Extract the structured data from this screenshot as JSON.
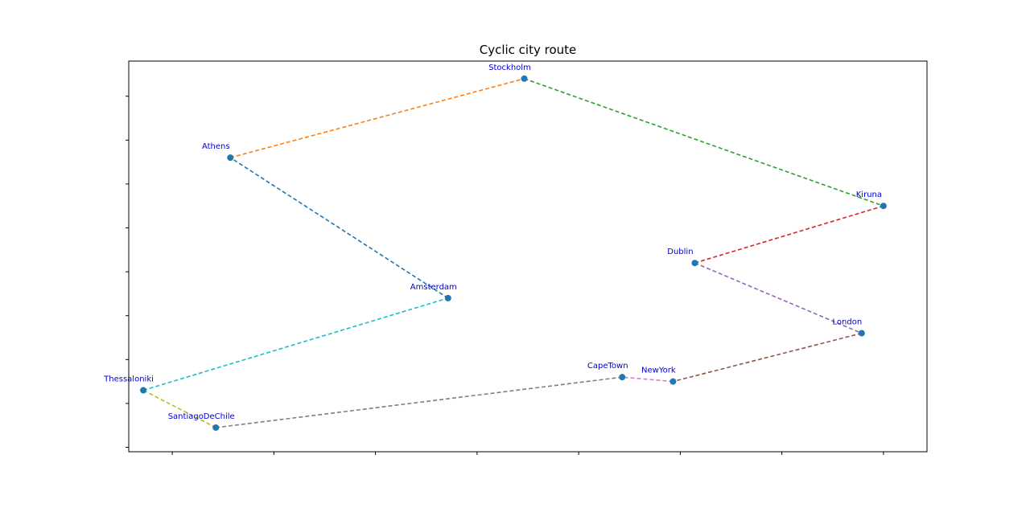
{
  "chart_data": {
    "type": "line",
    "title": "Cyclic city route",
    "xlabel": "",
    "ylabel": "",
    "xlim": [
      -0.6,
      10.4
    ],
    "ylim": [
      -0.1,
      8.8
    ],
    "xticks": [
      0,
      1.4,
      2.8,
      4.2,
      5.6,
      7.0,
      8.4,
      9.8
    ],
    "yticks": [
      0,
      1,
      2,
      3,
      4,
      5,
      6,
      7,
      8
    ],
    "grid": false,
    "legend": "none",
    "marker_color": "#1f77b4",
    "label_color": "#0000cc",
    "cities": [
      {
        "name": "Amsterdam",
        "x": 3.8,
        "y": 3.4
      },
      {
        "name": "Athens",
        "x": 0.8,
        "y": 6.6
      },
      {
        "name": "Stockholm",
        "x": 4.85,
        "y": 8.4
      },
      {
        "name": "Kiruna",
        "x": 9.8,
        "y": 5.5
      },
      {
        "name": "Dublin",
        "x": 7.2,
        "y": 4.2
      },
      {
        "name": "London",
        "x": 9.5,
        "y": 2.6
      },
      {
        "name": "NewYork",
        "x": 6.9,
        "y": 1.5
      },
      {
        "name": "CapeTown",
        "x": 6.2,
        "y": 1.6
      },
      {
        "name": "SantiagoDeChile",
        "x": 0.6,
        "y": 0.45
      },
      {
        "name": "Thessaloniki",
        "x": -0.4,
        "y": 1.3
      }
    ],
    "segment_colors": [
      "#1f77b4",
      "#ff7f0e",
      "#2ca02c",
      "#d62728",
      "#9467bd",
      "#8c564b",
      "#e377c2",
      "#7f7f7f",
      "#bcbd22",
      "#17becf"
    ]
  }
}
